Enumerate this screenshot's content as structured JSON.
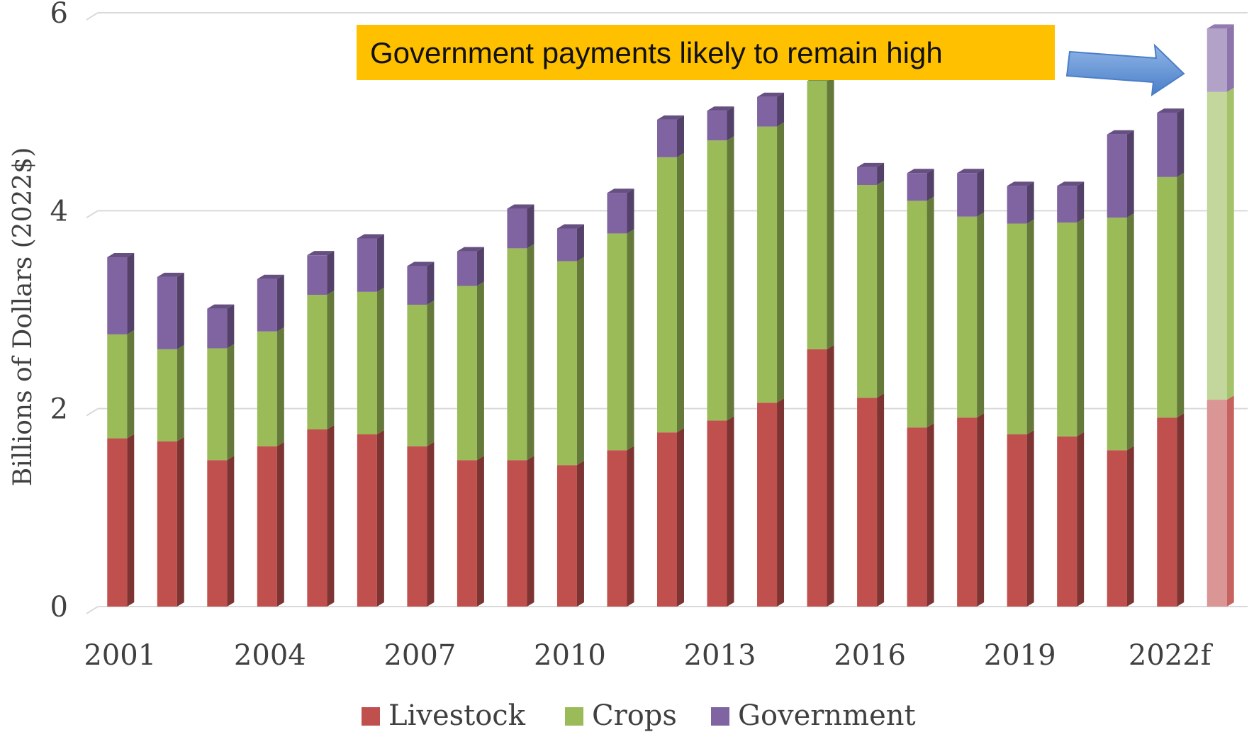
{
  "chart_data": {
    "type": "bar",
    "stacked": true,
    "title": "",
    "xlabel": "",
    "ylabel": "Billions of Dollars (2022$)",
    "ylim": [
      0,
      6
    ],
    "yticks": [
      "0",
      "2",
      "4",
      "6"
    ],
    "x_tick_labels": [
      "2001",
      "2004",
      "2007",
      "2010",
      "2013",
      "2016",
      "2019",
      "2022f"
    ],
    "categories": [
      "2001",
      "2002",
      "2003",
      "2004",
      "2005",
      "2006",
      "2007",
      "2008",
      "2009",
      "2010",
      "2011",
      "2012",
      "2013",
      "2014",
      "2015",
      "2016",
      "2017",
      "2018",
      "2019",
      "2020",
      "2021",
      "2022",
      "2023"
    ],
    "forecast_index": 22,
    "grid": true,
    "legend_position": "bottom",
    "series": [
      {
        "name": "Livestock",
        "color": "#c0504d",
        "values": [
          1.7,
          1.67,
          1.48,
          1.62,
          1.79,
          1.74,
          1.62,
          1.48,
          1.48,
          1.43,
          1.58,
          1.76,
          1.88,
          2.06,
          2.6,
          2.11,
          1.81,
          1.91,
          1.74,
          1.72,
          1.58,
          1.91,
          2.09
        ]
      },
      {
        "name": "Crops",
        "color": "#9bbb59",
        "values": [
          1.05,
          0.93,
          1.13,
          1.16,
          1.36,
          1.44,
          1.43,
          1.76,
          2.14,
          2.06,
          2.19,
          2.78,
          2.83,
          2.79,
          2.71,
          2.15,
          2.29,
          2.03,
          2.13,
          2.16,
          2.35,
          2.43,
          3.11
        ]
      },
      {
        "name": "Government",
        "color": "#8064a2",
        "values": [
          0.78,
          0.73,
          0.4,
          0.53,
          0.4,
          0.54,
          0.39,
          0.35,
          0.4,
          0.33,
          0.41,
          0.38,
          0.3,
          0.3,
          0.0,
          0.18,
          0.28,
          0.44,
          0.38,
          0.37,
          0.84,
          0.65,
          0.64
        ]
      }
    ],
    "annotation": {
      "text": "Government payments likely to remain high",
      "background": "#ffc000"
    },
    "arrow_color": "#4f81bd"
  }
}
